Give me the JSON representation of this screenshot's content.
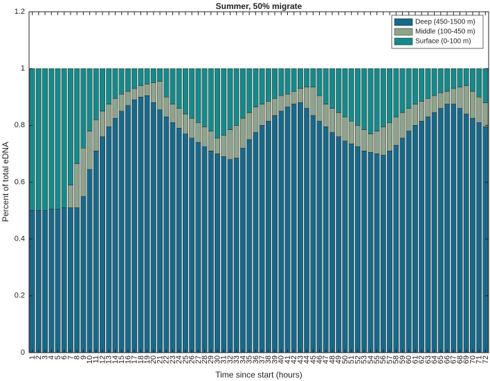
{
  "chart_data": {
    "type": "stacked_bar",
    "title": "Summer, 50% migrate",
    "x_label": "Time since start (hours)",
    "y_label": "Percent of total eDNA",
    "categories": [
      "1",
      "2",
      "3",
      "4",
      "5",
      "6",
      "7",
      "8",
      "9",
      "10",
      "11",
      "12",
      "13",
      "14",
      "15",
      "16",
      "17",
      "18",
      "19",
      "20",
      "21",
      "22",
      "23",
      "24",
      "25",
      "26",
      "27",
      "28",
      "29",
      "30",
      "31",
      "32",
      "33",
      "34",
      "35",
      "36",
      "37",
      "38",
      "39",
      "40",
      "41",
      "42",
      "43",
      "44",
      "45",
      "46",
      "47",
      "48",
      "49",
      "50",
      "51",
      "52",
      "53",
      "54",
      "55",
      "56",
      "57",
      "58",
      "59",
      "60",
      "61",
      "62",
      "63",
      "64",
      "65",
      "66",
      "67",
      "68",
      "69",
      "70",
      "71",
      "72"
    ],
    "series": [
      {
        "name": "Deep (450-1500 m)",
        "color": "#17698a",
        "values": [
          0.5,
          0.5,
          0.5,
          0.505,
          0.505,
          0.51,
          0.51,
          0.51,
          0.55,
          0.645,
          0.71,
          0.76,
          0.795,
          0.825,
          0.85,
          0.87,
          0.89,
          0.9,
          0.905,
          0.88,
          0.855,
          0.83,
          0.81,
          0.79,
          0.77,
          0.755,
          0.74,
          0.725,
          0.71,
          0.7,
          0.69,
          0.68,
          0.685,
          0.72,
          0.75,
          0.775,
          0.8,
          0.815,
          0.835,
          0.85,
          0.865,
          0.875,
          0.88,
          0.86,
          0.835,
          0.815,
          0.795,
          0.775,
          0.76,
          0.745,
          0.735,
          0.725,
          0.71,
          0.705,
          0.7,
          0.695,
          0.71,
          0.73,
          0.755,
          0.78,
          0.8,
          0.815,
          0.83,
          0.845,
          0.86,
          0.875,
          0.875,
          0.86,
          0.84,
          0.825,
          0.81,
          0.795
        ]
      },
      {
        "name": "Middle (100-450 m)",
        "color": "#8ea38b",
        "values": [
          0,
          0,
          0,
          0,
          0,
          0,
          0.08,
          0.155,
          0.17,
          0.135,
          0.11,
          0.09,
          0.08,
          0.07,
          0.06,
          0.05,
          0.04,
          0.04,
          0.04,
          0.07,
          0.1,
          0.07,
          0.065,
          0.07,
          0.07,
          0.07,
          0.07,
          0.07,
          0.07,
          0.055,
          0.075,
          0.105,
          0.115,
          0.105,
          0.095,
          0.09,
          0.075,
          0.07,
          0.06,
          0.055,
          0.045,
          0.045,
          0.05,
          0.075,
          0.1,
          0.09,
          0.08,
          0.085,
          0.085,
          0.085,
          0.08,
          0.075,
          0.075,
          0.065,
          0.08,
          0.1,
          0.1,
          0.1,
          0.09,
          0.08,
          0.075,
          0.07,
          0.065,
          0.06,
          0.055,
          0.045,
          0.055,
          0.075,
          0.1,
          0.095,
          0.09,
          0.085
        ]
      },
      {
        "name": "Surface (0-100 m)",
        "color": "#168a8a",
        "values": [
          0.5,
          0.5,
          0.5,
          0.495,
          0.495,
          0.49,
          0.41,
          0.335,
          0.28,
          0.22,
          0.18,
          0.15,
          0.125,
          0.105,
          0.09,
          0.08,
          0.07,
          0.06,
          0.055,
          0.05,
          0.045,
          0.1,
          0.125,
          0.14,
          0.16,
          0.175,
          0.19,
          0.205,
          0.22,
          0.245,
          0.235,
          0.215,
          0.2,
          0.175,
          0.155,
          0.135,
          0.125,
          0.115,
          0.105,
          0.095,
          0.09,
          0.08,
          0.07,
          0.065,
          0.065,
          0.095,
          0.125,
          0.14,
          0.155,
          0.17,
          0.185,
          0.2,
          0.215,
          0.23,
          0.22,
          0.205,
          0.19,
          0.17,
          0.155,
          0.14,
          0.125,
          0.115,
          0.105,
          0.095,
          0.085,
          0.08,
          0.07,
          0.065,
          0.06,
          0.08,
          0.1,
          0.12
        ]
      }
    ],
    "ylim": [
      0,
      1.2
    ],
    "yticks": [
      0,
      0.2,
      0.4,
      0.6,
      0.8,
      1,
      1.2
    ],
    "legend": "upper-right"
  }
}
